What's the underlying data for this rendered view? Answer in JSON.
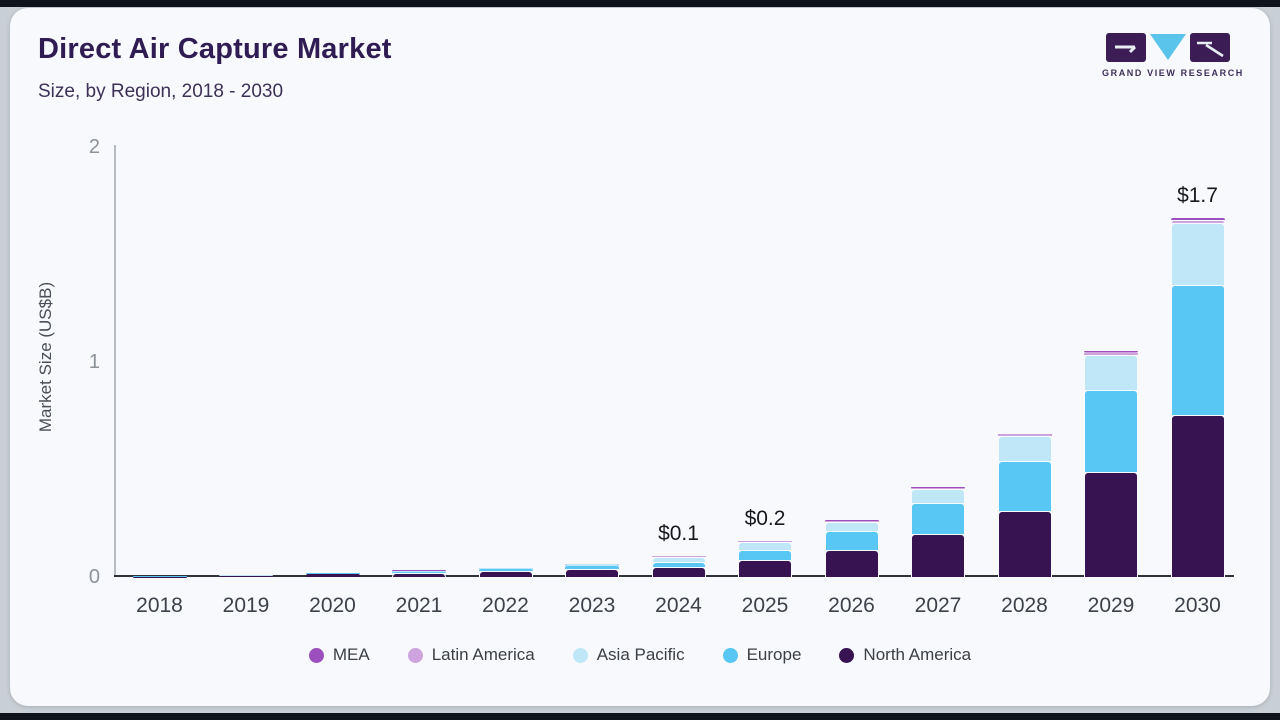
{
  "page": {
    "title": "Direct Air Capture Market",
    "subtitle": "Size, by Region, 2018 - 2030",
    "logo_text": "GRAND VIEW RESEARCH"
  },
  "colors": {
    "card_background": "#f7f9fc",
    "page_background": "#c9cfd6",
    "title_text": "#2f1c52",
    "logo_purple": "#3c1c55",
    "logo_blue": "#5bc4ea"
  },
  "chart_data": {
    "type": "bar",
    "stacked": true,
    "title": "Direct Air Capture Market",
    "subtitle": "Size, by Region, 2018 - 2030",
    "xlabel": "",
    "ylabel": "Market Size (US$B)",
    "ylim": [
      0,
      2
    ],
    "yticks": [
      0,
      1,
      2
    ],
    "grid": false,
    "legend_position": "bottom",
    "categories": [
      "2018",
      "2019",
      "2020",
      "2021",
      "2022",
      "2023",
      "2024",
      "2025",
      "2026",
      "2027",
      "2028",
      "2029",
      "2030"
    ],
    "series": [
      {
        "name": "North America",
        "color": "#371352",
        "values": [
          0.002,
          0.004,
          0.013,
          0.018,
          0.028,
          0.038,
          0.048,
          0.08,
          0.125,
          0.198,
          0.308,
          0.488,
          0.755
        ]
      },
      {
        "name": "Europe",
        "color": "#58c7f3",
        "values": [
          0.001,
          0.002,
          0.004,
          0.006,
          0.007,
          0.011,
          0.024,
          0.047,
          0.09,
          0.145,
          0.232,
          0.382,
          0.605
        ]
      },
      {
        "name": "Asia Pacific",
        "color": "#bfe7f8",
        "values": [
          0.001,
          0.002,
          0.003,
          0.005,
          0.006,
          0.01,
          0.022,
          0.036,
          0.042,
          0.068,
          0.116,
          0.163,
          0.285
        ]
      },
      {
        "name": "Latin America",
        "color": "#cfa3de",
        "values": [
          0,
          0,
          0.001,
          0.001,
          0.001,
          0.001,
          0.002,
          0.003,
          0.004,
          0.005,
          0.007,
          0.012,
          0.018
        ]
      },
      {
        "name": "MEA",
        "color": "#9c50bd",
        "values": [
          0,
          0,
          0,
          0.001,
          0.001,
          0.001,
          0.001,
          0.002,
          0.002,
          0.003,
          0.004,
          0.006,
          0.009
        ]
      }
    ],
    "totals_approx": [
      0.004,
      0.008,
      0.021,
      0.031,
      0.043,
      0.061,
      0.097,
      0.168,
      0.263,
      0.419,
      0.667,
      1.051,
      1.672
    ],
    "bar_labels": {
      "2024": "$0.1",
      "2025": "$0.2",
      "2030": "$1.7"
    },
    "legend_order": [
      "MEA",
      "Latin America",
      "Asia Pacific",
      "Europe",
      "North America"
    ]
  }
}
